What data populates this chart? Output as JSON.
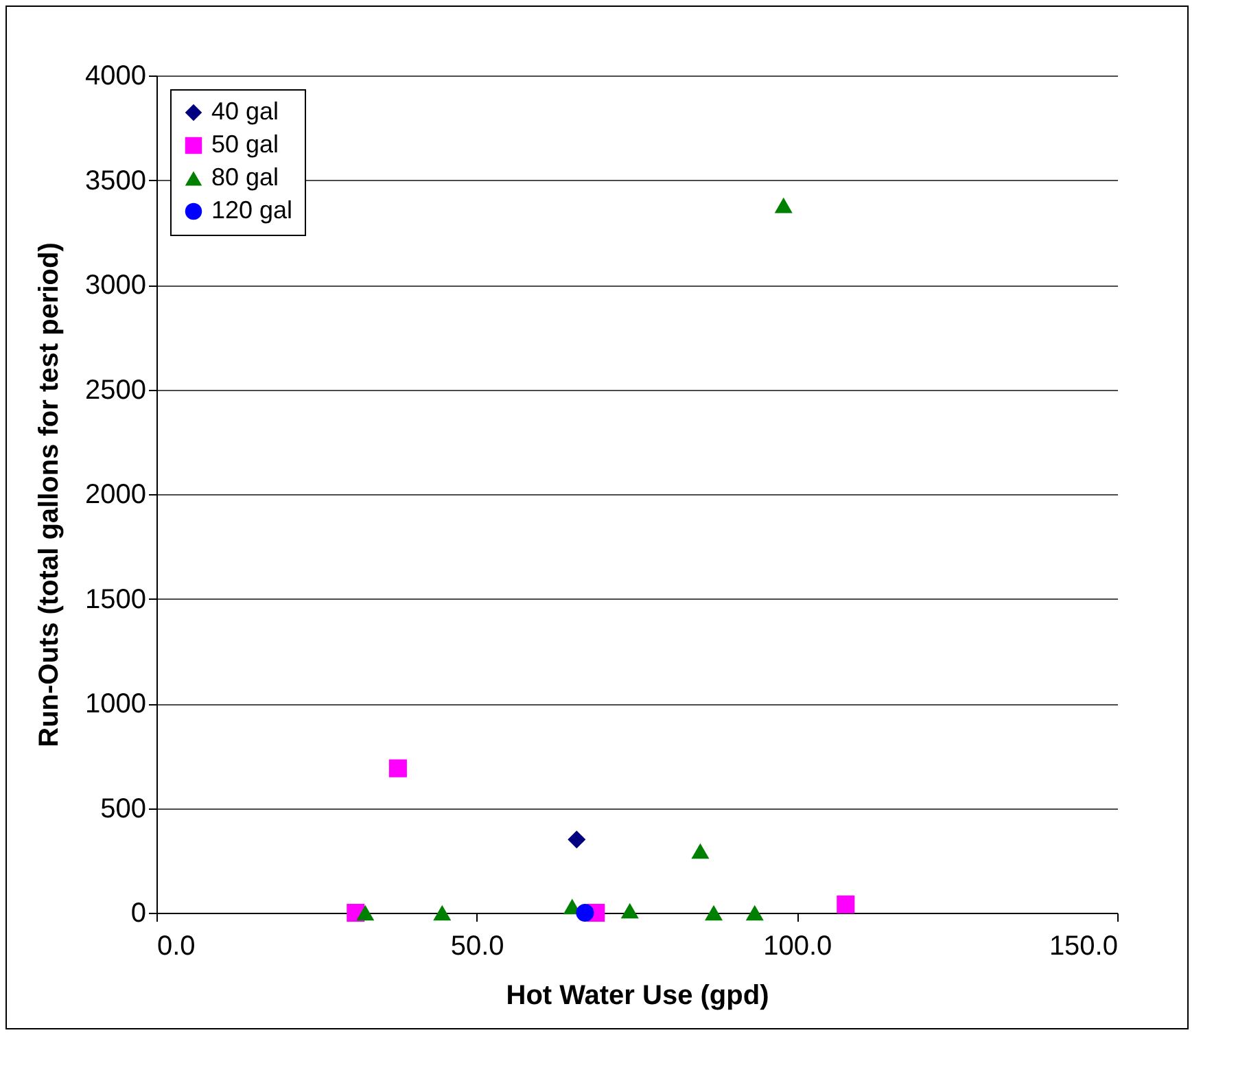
{
  "chart_data": {
    "type": "scatter",
    "xlabel": "Hot Water Use (gpd)",
    "ylabel": "Run-Outs (total gallons for test period)",
    "xlim": [
      0,
      150
    ],
    "xticks": [
      {
        "value": 0,
        "label": "0.0"
      },
      {
        "value": 50,
        "label": "50.0"
      },
      {
        "value": 100,
        "label": "100.0"
      },
      {
        "value": 150,
        "label": "150.0"
      }
    ],
    "ylim": [
      0,
      4000
    ],
    "yticks": [
      0,
      500,
      1000,
      1500,
      2000,
      2500,
      3000,
      3500,
      4000
    ],
    "grid": "y",
    "legend": "top left",
    "series": [
      {
        "name": "40 gal",
        "color": "#000080",
        "marker": "diamond",
        "x": [
          65.6
        ],
        "values": [
          350
        ]
      },
      {
        "name": "50 gal",
        "color": "#ff00ff",
        "marker": "square",
        "x": [
          31.1,
          37.7,
          68.6,
          107.6
        ],
        "values": [
          0,
          690,
          0,
          40
        ]
      },
      {
        "name": "80 gal",
        "color": "#008000",
        "marker": "triangle",
        "x": [
          32.6,
          44.6,
          64.9,
          73.9,
          84.9,
          87.0,
          93.4,
          97.9
        ],
        "values": [
          0,
          0,
          30,
          10,
          295,
          0,
          0,
          3380
        ]
      },
      {
        "name": "120 gal",
        "color": "#0000ff",
        "marker": "circle",
        "x": [
          66.9
        ],
        "values": [
          0
        ]
      }
    ]
  }
}
